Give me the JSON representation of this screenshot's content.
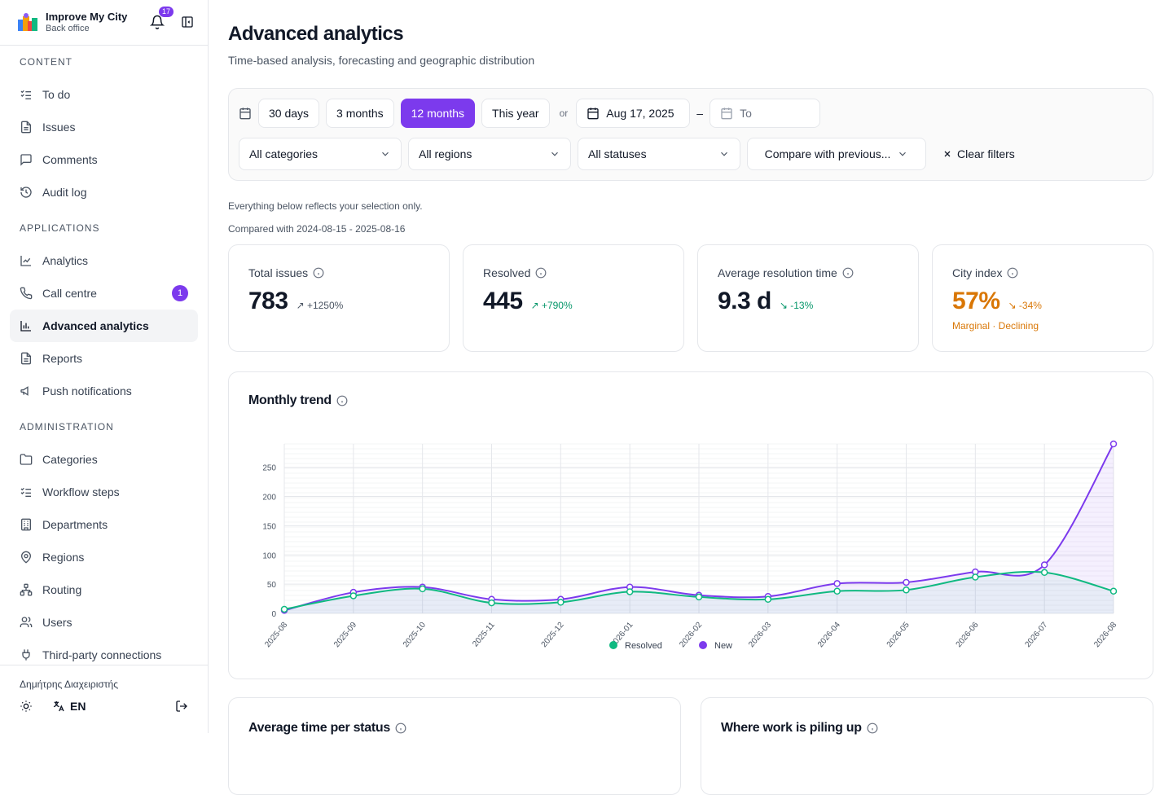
{
  "app": {
    "name": "Improve My City",
    "subtitle": "Back office",
    "notifications": "17"
  },
  "sidebar": {
    "sections": [
      {
        "title": "CONTENT",
        "items": [
          {
            "label": "To do",
            "icon": "list-check-icon"
          },
          {
            "label": "Issues",
            "icon": "document-icon"
          },
          {
            "label": "Comments",
            "icon": "comment-icon"
          },
          {
            "label": "Audit log",
            "icon": "history-icon"
          }
        ]
      },
      {
        "title": "APPLICATIONS",
        "items": [
          {
            "label": "Analytics",
            "icon": "line-chart-icon"
          },
          {
            "label": "Call centre",
            "icon": "phone-icon",
            "badge": "1"
          },
          {
            "label": "Advanced analytics",
            "icon": "bar-chart-icon",
            "active": true
          },
          {
            "label": "Reports",
            "icon": "document-icon"
          },
          {
            "label": "Push notifications",
            "icon": "megaphone-icon"
          }
        ]
      },
      {
        "title": "ADMINISTRATION",
        "items": [
          {
            "label": "Categories",
            "icon": "folder-icon"
          },
          {
            "label": "Workflow steps",
            "icon": "list-check-icon"
          },
          {
            "label": "Departments",
            "icon": "building-icon"
          },
          {
            "label": "Regions",
            "icon": "map-pin-icon"
          },
          {
            "label": "Routing",
            "icon": "network-icon"
          },
          {
            "label": "Users",
            "icon": "users-icon"
          },
          {
            "label": "Third-party connections",
            "icon": "plug-icon"
          }
        ]
      }
    ],
    "user": "Δημήτρης Διαχειριστής",
    "language": "EN"
  },
  "header": {
    "title": "Advanced analytics",
    "subtitle": "Time-based analysis, forecasting and geographic distribution"
  },
  "filters": {
    "ranges": [
      "30 days",
      "3 months",
      "12 months",
      "This year"
    ],
    "active_range": "12 months",
    "or": "or",
    "from": "Aug 17, 2025",
    "dash": "–",
    "to_placeholder": "To",
    "category": "All categories",
    "region": "All regions",
    "status": "All statuses",
    "compare": "Compare with previous...",
    "clear": "Clear filters"
  },
  "notes": {
    "selection": "Everything below reflects your selection only.",
    "compared": "Compared with 2024-08-15 - 2025-08-16"
  },
  "kpis": [
    {
      "label": "Total issues",
      "value": "783",
      "delta": "↗ +1250%",
      "tone": "neutral"
    },
    {
      "label": "Resolved",
      "value": "445",
      "delta": "↗ +790%",
      "tone": "up"
    },
    {
      "label": "Average resolution time",
      "value": "9.3 d",
      "delta": "↘ -13%",
      "tone": "up"
    },
    {
      "label": "City index",
      "value": "57%",
      "delta": "↘ -34%",
      "tone": "orange",
      "sub": "Marginal · Declining"
    }
  ],
  "trend": {
    "title": "Monthly trend",
    "chart_data": {
      "type": "line",
      "x": [
        "2025-08",
        "2025-09",
        "2025-10",
        "2025-11",
        "2025-12",
        "2026-01",
        "2026-02",
        "2026-03",
        "2026-04",
        "2026-05",
        "2026-06",
        "2026-07",
        "2026-08"
      ],
      "series": [
        {
          "name": "Resolved",
          "color": "#10b981",
          "values": [
            7,
            30,
            42,
            18,
            19,
            37,
            28,
            24,
            38,
            40,
            62,
            70,
            38
          ]
        },
        {
          "name": "New",
          "color": "#7c3aed",
          "values": [
            5,
            36,
            45,
            24,
            24,
            45,
            31,
            29,
            51,
            53,
            71,
            83,
            290
          ]
        }
      ],
      "yticks": [
        0,
        50,
        100,
        150,
        200,
        250
      ],
      "legend": "bottom-center"
    }
  },
  "bottom": {
    "left_title": "Average time per status",
    "right_title": "Where work is piling up"
  }
}
